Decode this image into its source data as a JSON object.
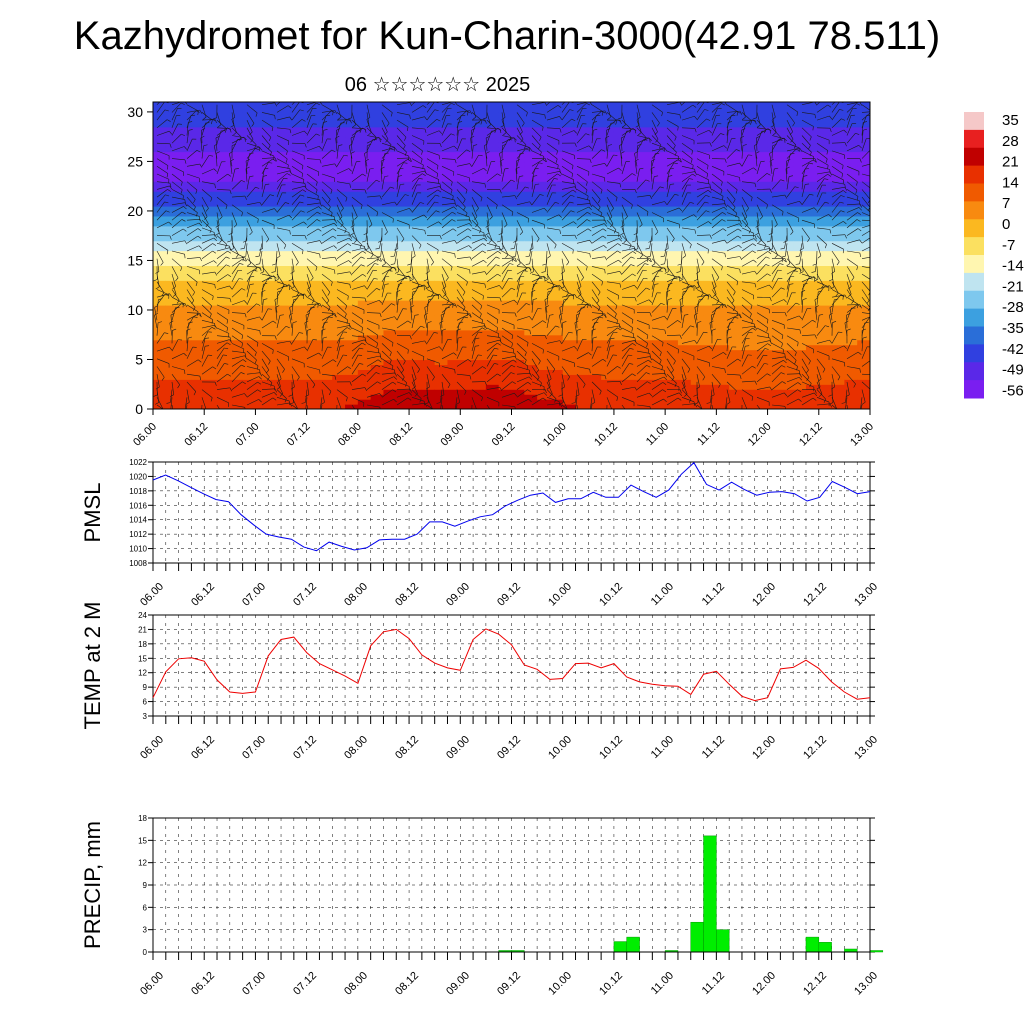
{
  "title": "Kazhydromet for Kun-Charin-3000(42.91 78.511)",
  "subtitle": "06 ☆☆☆☆☆☆ 2025",
  "colorbar": {
    "labels": [
      "35",
      "28",
      "21",
      "14",
      "7",
      "0",
      "-7",
      "-14",
      "-21",
      "-28",
      "-35",
      "-42",
      "-49",
      "-56"
    ],
    "colors": [
      "#f5c8c8",
      "#e82020",
      "#c00000",
      "#e83000",
      "#f05a00",
      "#f88a10",
      "#fbb820",
      "#fbe060",
      "#fff6b0",
      "#bfe4f0",
      "#7ec8ee",
      "#3ca0e0",
      "#2a6ed8",
      "#3040e0",
      "#5a28e8",
      "#7a1ef0"
    ]
  },
  "chart_data": [
    {
      "type": "heatmap",
      "title": "",
      "xlabel": "",
      "ylabel": "",
      "x_ticks": [
        "06.00",
        "06.12",
        "07.00",
        "07.12",
        "08.00",
        "08.12",
        "09.00",
        "09.12",
        "10.00",
        "10.12",
        "11.00",
        "11.12",
        "12.00",
        "12.12",
        "13.00"
      ],
      "y_ticks": [
        0,
        5,
        10,
        15,
        20,
        25,
        30
      ],
      "ylim": [
        0,
        31
      ],
      "levels_y": [
        0,
        3,
        7,
        11,
        14,
        16,
        18,
        20,
        21,
        23,
        25,
        27,
        31
      ],
      "temperature_profile": [
        22,
        16,
        9,
        2,
        -7,
        -18,
        -28,
        -38,
        -46,
        -56,
        -60,
        -52,
        -47
      ],
      "note_fields": "temperature shading with wind barbs"
    },
    {
      "type": "line",
      "ylabel": "PMSL",
      "ylim": [
        1008,
        1022
      ],
      "y_ticks": [
        1008,
        1010,
        1012,
        1014,
        1016,
        1018,
        1020,
        1022
      ],
      "x_ticks": [
        "06.00",
        "06.12",
        "07.00",
        "07.12",
        "08.00",
        "08.12",
        "09.00",
        "09.12",
        "10.00",
        "10.12",
        "11.00",
        "11.12",
        "12.00",
        "12.12",
        "13.00"
      ],
      "color": "#0000ee",
      "series": [
        {
          "values": [
            1019.5,
            1020.2,
            1019.4,
            1018.5,
            1017.6,
            1016.8,
            1016.5,
            1014.7,
            1013.3,
            1012.0,
            1011.6,
            1011.3,
            1010.2,
            1009.7,
            1010.9,
            1010.3,
            1009.8,
            1010.1,
            1011.2,
            1011.3,
            1011.3,
            1012.0,
            1013.7,
            1013.7,
            1013.1,
            1013.8,
            1014.4,
            1014.7,
            1015.9,
            1016.7,
            1017.4,
            1017.7,
            1016.4,
            1016.9,
            1016.9,
            1017.8,
            1017.1,
            1017.1,
            1018.8,
            1017.9,
            1017.1,
            1018.1,
            1020.3,
            1021.9,
            1018.9,
            1018.1,
            1019.2,
            1018.2,
            1017.4,
            1017.8,
            1017.9,
            1017.6,
            1016.6,
            1017.1,
            1019.3,
            1018.5,
            1017.6,
            1017.9
          ]
        }
      ]
    },
    {
      "type": "line",
      "ylabel": "TEMP at 2 M",
      "ylim": [
        3,
        24
      ],
      "y_ticks": [
        3,
        6,
        9,
        12,
        15,
        18,
        21,
        24
      ],
      "x_ticks": [
        "06.00",
        "06.12",
        "07.00",
        "07.12",
        "08.00",
        "08.12",
        "09.00",
        "09.12",
        "10.00",
        "10.12",
        "11.00",
        "11.12",
        "12.00",
        "12.12",
        "13.00"
      ],
      "color": "#ee0000",
      "series": [
        {
          "values": [
            6.8,
            12.2,
            14.9,
            15.1,
            14.4,
            10.5,
            8.0,
            7.7,
            8.0,
            15.5,
            18.9,
            19.4,
            16.2,
            13.9,
            12.6,
            11.3,
            9.8,
            17.6,
            20.5,
            21.0,
            19.1,
            15.7,
            14.0,
            13.0,
            12.5,
            18.9,
            21.1,
            20.0,
            17.8,
            13.6,
            12.7,
            10.6,
            10.8,
            13.9,
            14.0,
            13.0,
            13.9,
            11.1,
            10.1,
            9.6,
            9.3,
            9.2,
            7.5,
            11.7,
            12.3,
            9.6,
            7.1,
            6.2,
            6.8,
            12.8,
            13.1,
            14.6,
            12.9,
            10.1,
            8.0,
            6.5,
            6.8
          ]
        }
      ]
    },
    {
      "type": "bar",
      "ylabel": "PRECIP, mm",
      "ylim": [
        0,
        18
      ],
      "y_ticks": [
        0,
        3,
        6,
        9,
        12,
        15,
        18
      ],
      "x_ticks": [
        "06.00",
        "06.12",
        "07.00",
        "07.12",
        "08.00",
        "08.12",
        "09.00",
        "09.12",
        "10.00",
        "10.12",
        "11.00",
        "11.12",
        "12.00",
        "12.12",
        "13.00"
      ],
      "color": "#00ee00",
      "bars": [
        {
          "x": 27,
          "value": 0.2
        },
        {
          "x": 28,
          "value": 0.2
        },
        {
          "x": 36,
          "value": 1.4
        },
        {
          "x": 37,
          "value": 2.0
        },
        {
          "x": 40,
          "value": 0.2
        },
        {
          "x": 42,
          "value": 4.0
        },
        {
          "x": 43,
          "value": 15.6
        },
        {
          "x": 44,
          "value": 3.0
        },
        {
          "x": 51,
          "value": 2.0
        },
        {
          "x": 52,
          "value": 1.3
        },
        {
          "x": 54,
          "value": 0.4
        },
        {
          "x": 56,
          "value": 0.2
        }
      ]
    }
  ]
}
